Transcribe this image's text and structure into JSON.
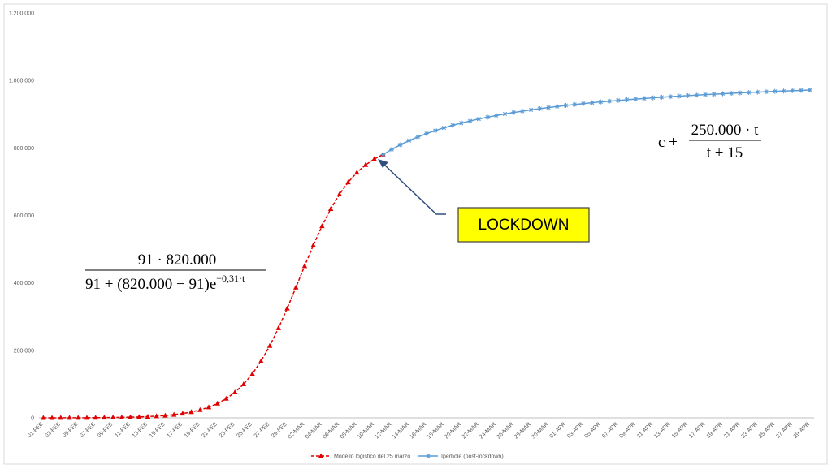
{
  "chart_data": {
    "type": "line",
    "categories": [
      "01-FEB",
      null,
      "03-FEB",
      null,
      "05-FEB",
      null,
      "07-FEB",
      null,
      "09-FEB",
      null,
      "11-FEB",
      null,
      "13-FEB",
      null,
      "15-FEB",
      null,
      "17-FEB",
      null,
      "19-FEB",
      null,
      "21-FEB",
      null,
      "23-FEB",
      null,
      "25-FEB",
      null,
      "27-FEB",
      null,
      "29-FEB",
      null,
      "02-MAR",
      null,
      "04-MAR",
      null,
      "06-MAR",
      null,
      "08-MAR",
      null,
      "10-MAR",
      null,
      "12-MAR",
      null,
      "14-MAR",
      null,
      "16-MAR",
      null,
      "18-MAR",
      null,
      "20-MAR",
      null,
      "22-MAR",
      null,
      "24-MAR",
      null,
      "26-MAR",
      null,
      "28-MAR",
      null,
      "30-MAR",
      null,
      "01-APR",
      null,
      "03-APR",
      null,
      "05-APR",
      null,
      "07-APR",
      null,
      "09-APR",
      null,
      "11-APR",
      null,
      "13-APR",
      null,
      "15-APR",
      null,
      "17-APR",
      null,
      "19-APR",
      null,
      "21-APR",
      null,
      "23-APR",
      null,
      "25-APR",
      null,
      "27-APR",
      null,
      "29-APR"
    ],
    "series": [
      {
        "name": "Modello logistico del 25 marzo",
        "color": "#e00000",
        "marker": "triangle",
        "dashed": true,
        "values": [
          91,
          124,
          169,
          231,
          314,
          429,
          584,
          797,
          1086,
          1480,
          2016,
          2748,
          3741,
          5093,
          6931,
          9421,
          12788,
          17338,
          23462,
          31660,
          42575,
          56983,
          75770,
          99939,
          130585,
          168205,
          213430,
          265888,
          324239,
          386600,
          450002,
          511541,
          568530,
          619162,
          662448,
          698212,
          727011,
          749680,
          767214,
          780607,
          null,
          null,
          null,
          null,
          null,
          null,
          null,
          null,
          null,
          null,
          null,
          null,
          null,
          null,
          null,
          null,
          null,
          null,
          null,
          null,
          null,
          null,
          null,
          null,
          null,
          null,
          null,
          null,
          null,
          null,
          null,
          null,
          null,
          null,
          null,
          null,
          null,
          null,
          null,
          null,
          null,
          null,
          null,
          null,
          null,
          null,
          null,
          null,
          null
        ]
      },
      {
        "name": "Iperbole (post-lockdown)",
        "color": "#5b9bd5",
        "marker": "asterisk",
        "dashed": false,
        "values": [
          null,
          null,
          null,
          null,
          null,
          null,
          null,
          null,
          null,
          null,
          null,
          null,
          null,
          null,
          null,
          null,
          null,
          null,
          null,
          null,
          null,
          null,
          null,
          null,
          null,
          null,
          null,
          null,
          null,
          null,
          null,
          null,
          null,
          null,
          null,
          null,
          null,
          null,
          null,
          780000,
          795625,
          809412,
          821667,
          832632,
          842500,
          851429,
          859545,
          866957,
          873750,
          880000,
          885769,
          891111,
          896071,
          900690,
          905000,
          909032,
          912813,
          916364,
          919706,
          922857,
          925833,
          928649,
          931316,
          933846,
          936250,
          938537,
          940714,
          942791,
          944773,
          946667,
          948478,
          950213,
          951875,
          953469,
          955000,
          956471,
          957885,
          959245,
          960556,
          961818,
          963036,
          964211,
          965345,
          966441,
          967500,
          968525,
          969516,
          970476,
          971441
        ]
      }
    ],
    "ylim": [
      0,
      1200000
    ],
    "yticks": [
      0,
      {
        "value": 200000,
        "label": "200.000"
      },
      {
        "value": 400000,
        "label": "400.000"
      },
      {
        "value": 600000,
        "label": "600.000"
      },
      {
        "value": 800000,
        "label": "800.000"
      },
      {
        "value": 1000000,
        "label": "1.000.000"
      },
      {
        "value": 1200000,
        "label": "1.200.000"
      }
    ],
    "grid": false,
    "legend": "bottom",
    "annotations": {
      "formula_left": {
        "numerator": "91 · 820.000",
        "denominator": "91 + (820.000 − 91)e",
        "exponent": "−0,31·t"
      },
      "formula_right": {
        "prefix": "c +",
        "numerator": "250.000 · t",
        "denominator": "t + 15"
      },
      "lockdown": "LOCKDOWN"
    }
  }
}
